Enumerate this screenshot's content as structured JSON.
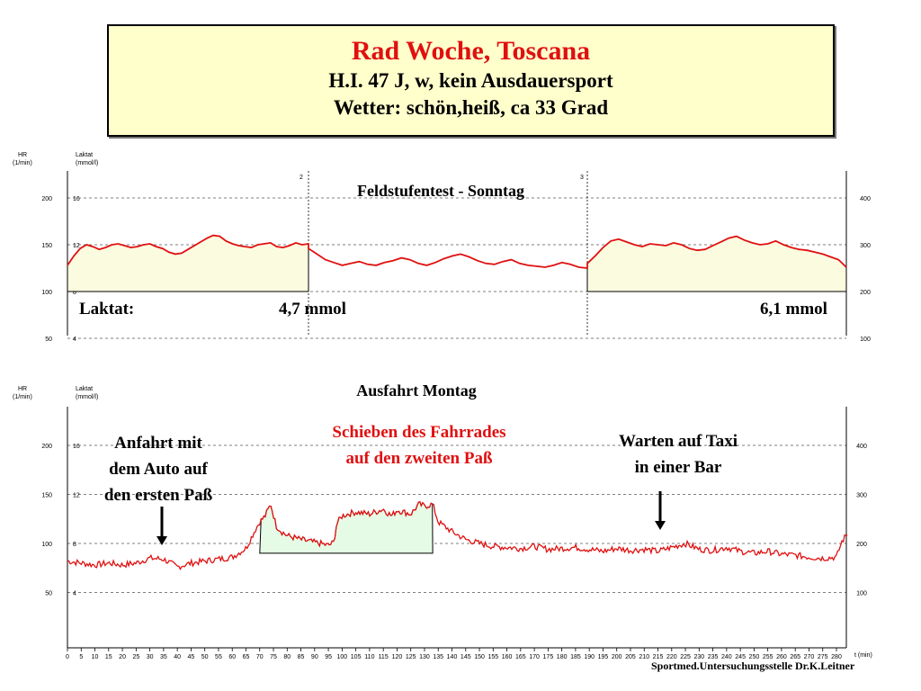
{
  "title": {
    "line1": "Rad Woche, Toscana",
    "line2": "H.I. 47 J, w, kein Ausdauersport",
    "line3": "Wetter: schön,heiß, ca 33 Grad"
  },
  "colors": {
    "title_text": "#e01010",
    "title_bg": "#ffffcc",
    "line": "#e01010",
    "fill_test": "#fbfbe0",
    "fill_push": "#e6fbe6",
    "annotation_red": "#e01010"
  },
  "chart_data": [
    {
      "type": "line",
      "title": "Feldstufentest - Sonntag",
      "left_axis_labels": [
        "HR",
        "(1/min)"
      ],
      "lactate_axis_labels": [
        "Laktat",
        "(mmol/l)"
      ],
      "hr_ticks": [
        50,
        100,
        150,
        200
      ],
      "lactate_ticks": [
        4,
        8,
        12,
        16
      ],
      "right_ticks": [
        100,
        200,
        300,
        400
      ],
      "top_markers": [
        "2",
        "3"
      ],
      "grid": "dashed",
      "annotations": {
        "laktat_label": "Laktat:",
        "value1": "4,7 mmol",
        "value2": "6,1 mmol"
      },
      "segments": [
        {
          "shaded": true,
          "hr": [
            128,
            138,
            146,
            150,
            148,
            145,
            147,
            150,
            151,
            149,
            147,
            148,
            150,
            151,
            148,
            146,
            142,
            140,
            141,
            145,
            149,
            153,
            157,
            160,
            159,
            154,
            151,
            149,
            148,
            147,
            150,
            151,
            152,
            148,
            147,
            149,
            152,
            150,
            151
          ]
        },
        {
          "shaded": false,
          "hr": [
            146,
            140,
            134,
            131,
            128,
            130,
            132,
            129,
            128,
            131,
            133,
            136,
            134,
            130,
            128,
            131,
            135,
            138,
            140,
            137,
            133,
            130,
            129,
            132,
            134,
            130,
            128,
            127,
            126,
            128,
            131,
            129,
            126,
            125
          ]
        },
        {
          "shaded": true,
          "hr": [
            130,
            138,
            147,
            154,
            156,
            153,
            150,
            148,
            151,
            150,
            149,
            152,
            150,
            146,
            144,
            145,
            149,
            153,
            157,
            159,
            155,
            152,
            150,
            151,
            154,
            150,
            147,
            145,
            144,
            142,
            140,
            137,
            134,
            126
          ]
        }
      ]
    },
    {
      "type": "line",
      "title": "Ausfahrt Montag",
      "left_axis_labels": [
        "HR",
        "(1/min)"
      ],
      "lactate_axis_labels": [
        "Laktat",
        "(mmol/l)"
      ],
      "hr_ticks": [
        50,
        100,
        150,
        200
      ],
      "lactate_ticks": [
        4,
        8,
        12,
        16
      ],
      "right_ticks": [
        100,
        200,
        300,
        400
      ],
      "x_label": "t (min)",
      "x_ticks": [
        "0",
        "5",
        "10",
        "15",
        "20",
        "25",
        "30",
        "35",
        "40",
        "45",
        "50",
        "55",
        "60",
        "65",
        "70",
        "75",
        "80",
        "85",
        "90",
        "95",
        "100",
        "105",
        "110",
        "115",
        "120",
        "125",
        "130",
        "135",
        "140",
        "145",
        "150",
        "155",
        "160",
        "165",
        "170",
        "175",
        "180",
        "185",
        "190",
        "195",
        "200",
        "205",
        "210",
        "215",
        "220",
        "225",
        "230",
        "235",
        "240",
        "245",
        "250",
        "255",
        "260",
        "265",
        "270",
        "275",
        "280"
      ],
      "x_tick_values": [
        0,
        5,
        10,
        15,
        20,
        25,
        30,
        35,
        40,
        45,
        50,
        55,
        60,
        65,
        70,
        75,
        80,
        85,
        90,
        95,
        100,
        105,
        110,
        115,
        120,
        125,
        130,
        135,
        140,
        145,
        150,
        155,
        160,
        165,
        170,
        175,
        180,
        185,
        190,
        195,
        200,
        205,
        210,
        215,
        220,
        225,
        230,
        235,
        240,
        245,
        250,
        255,
        260,
        265,
        270,
        275,
        280
      ],
      "grid": "dashed",
      "shaded_interval_min": [
        70,
        133
      ],
      "series": [
        {
          "t": [
            0,
            5,
            10,
            15,
            20,
            25,
            30,
            35,
            40,
            45,
            50,
            55,
            60,
            65,
            68,
            70,
            72,
            74,
            76,
            78,
            80,
            85,
            90,
            92,
            95,
            97,
            98,
            100,
            102,
            105,
            110,
            115,
            118,
            120,
            125,
            128,
            130,
            133,
            135,
            140,
            145,
            150,
            155,
            160,
            165,
            170,
            175,
            180,
            185,
            190,
            195,
            200,
            205,
            210,
            215,
            220,
            225,
            230,
            235,
            240,
            245,
            250,
            255,
            260,
            265,
            270,
            275,
            280,
            282,
            284
          ],
          "hr": [
            82,
            80,
            78,
            80,
            78,
            80,
            85,
            84,
            76,
            80,
            82,
            84,
            86,
            95,
            112,
            122,
            128,
            140,
            118,
            112,
            108,
            104,
            101,
            100,
            98,
            101,
            120,
            128,
            130,
            132,
            130,
            135,
            128,
            134,
            130,
            140,
            138,
            140,
            122,
            112,
            104,
            100,
            97,
            96,
            95,
            97,
            94,
            95,
            96,
            94,
            92,
            95,
            93,
            94,
            92,
            96,
            100,
            94,
            93,
            96,
            92,
            90,
            92,
            89,
            88,
            86,
            85,
            86,
            102,
            110
          ]
        }
      ],
      "annotations": {
        "anfahrt": [
          "Anfahrt mit",
          "dem Auto auf",
          "den ersten Paß"
        ],
        "schieben": [
          "Schieben des Fahrrades",
          "auf den zweiten Paß"
        ],
        "warten": [
          "Warten auf Taxi",
          "in einer Bar"
        ]
      }
    }
  ],
  "footer": "Sportmed.Untersuchungsstelle Dr.K.Leitner"
}
